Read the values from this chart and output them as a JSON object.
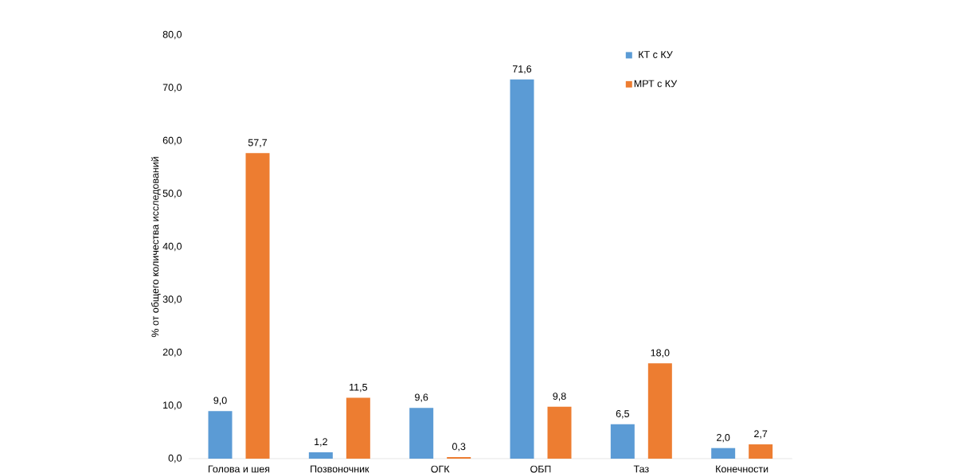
{
  "chart_data": {
    "type": "bar",
    "ylabel": "% от общего количества исследований",
    "categories": [
      "Голова и шея",
      "Позвоночник",
      "ОГК",
      "ОБП",
      "Таз",
      "Конечности"
    ],
    "series": [
      {
        "name": "КТ с КУ",
        "color": "#5b9bd5",
        "values": [
          9.0,
          1.2,
          9.6,
          71.6,
          6.5,
          2.0
        ],
        "value_labels": [
          "9,0",
          "1,2",
          "9,6",
          "71,6",
          "6,5",
          "2,0"
        ]
      },
      {
        "name": "МРТ с КУ",
        "color": "#ed7d31",
        "values": [
          57.7,
          11.5,
          0.3,
          9.8,
          18.0,
          2.7
        ],
        "value_labels": [
          "57,7",
          "11,5",
          "0,3",
          "9,8",
          "18,0",
          "2,7"
        ]
      }
    ],
    "ylim": [
      0,
      80
    ],
    "yticks": [
      {
        "value": 0,
        "label": "0,0"
      },
      {
        "value": 10,
        "label": "10,0"
      },
      {
        "value": 20,
        "label": "20,0"
      },
      {
        "value": 30,
        "label": "30,0"
      },
      {
        "value": 40,
        "label": "40,0"
      },
      {
        "value": 50,
        "label": "50,0"
      },
      {
        "value": 60,
        "label": "60,0"
      },
      {
        "value": 70,
        "label": "70,0"
      },
      {
        "value": 80,
        "label": "80,0"
      }
    ],
    "legend": "top right"
  }
}
